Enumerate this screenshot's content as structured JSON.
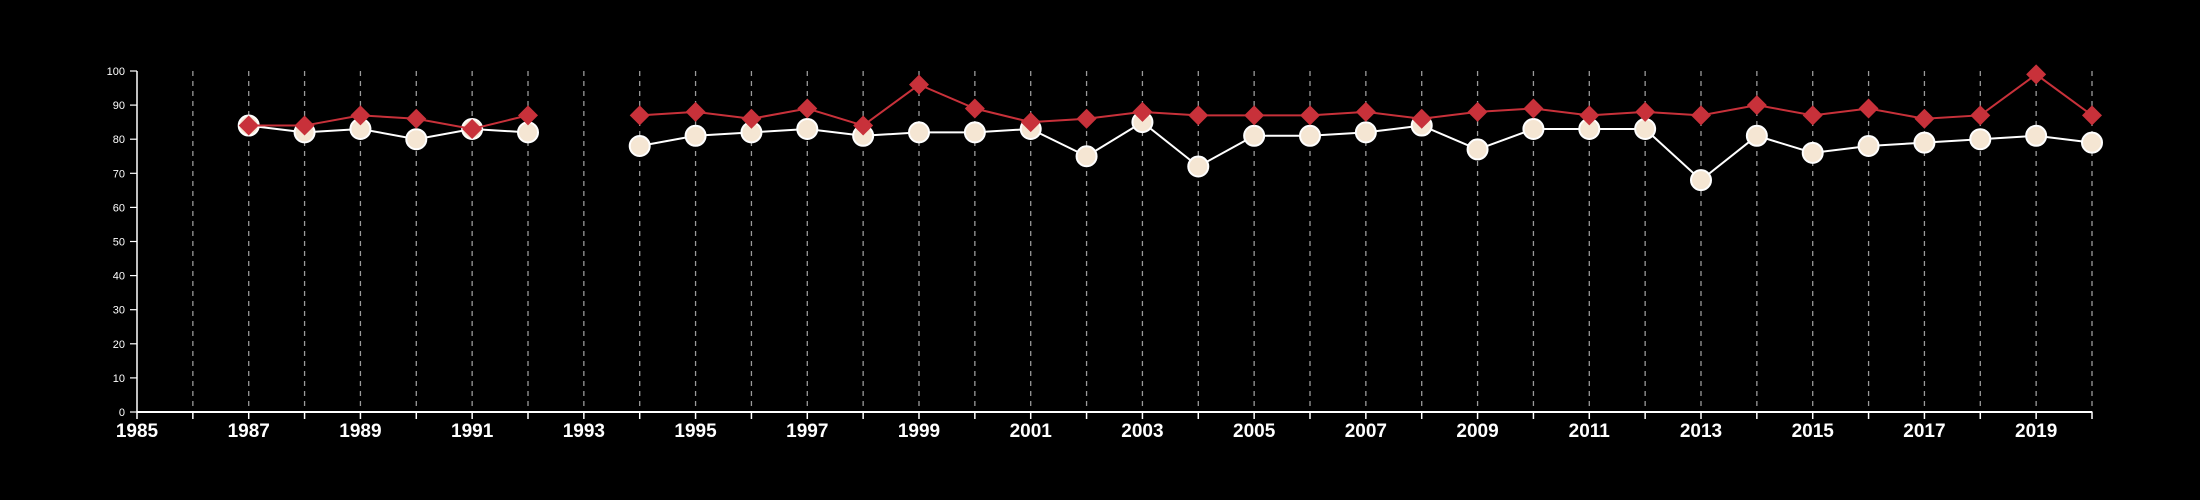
{
  "chart_data": {
    "type": "line",
    "xlim": [
      1985,
      2020
    ],
    "ylim": [
      0,
      100
    ],
    "y_ticks": [
      0,
      10,
      20,
      30,
      40,
      50,
      60,
      70,
      80,
      90,
      100
    ],
    "x_tick_labels": [
      1985,
      1987,
      1989,
      1991,
      1993,
      1995,
      1997,
      1999,
      2001,
      2003,
      2005,
      2007,
      2009,
      2011,
      2013,
      2015,
      2017,
      2019
    ],
    "vertical_gridlines_at": [
      1986,
      1987,
      1988,
      1989,
      1990,
      1991,
      1992,
      1993,
      1994,
      1995,
      1996,
      1997,
      1998,
      1999,
      2000,
      2001,
      2002,
      2003,
      2004,
      2005,
      2006,
      2007,
      2008,
      2009,
      2010,
      2011,
      2012,
      2013,
      2014,
      2015,
      2016,
      2017,
      2018,
      2019,
      2020
    ],
    "grid": "vertical dashed",
    "legend": "none",
    "series": [
      {
        "marker": "circle",
        "color": "#f5e6d3",
        "line_color": "#ffffff",
        "points": [
          {
            "x": 1987,
            "y": 84
          },
          {
            "x": 1988,
            "y": 82
          },
          {
            "x": 1989,
            "y": 83
          },
          {
            "x": 1990,
            "y": 80
          },
          {
            "x": 1991,
            "y": 83
          },
          {
            "x": 1992,
            "y": 82
          },
          {
            "x": 1994,
            "y": 78
          },
          {
            "x": 1995,
            "y": 81
          },
          {
            "x": 1996,
            "y": 82
          },
          {
            "x": 1997,
            "y": 83
          },
          {
            "x": 1998,
            "y": 81
          },
          {
            "x": 1999,
            "y": 82
          },
          {
            "x": 2000,
            "y": 82
          },
          {
            "x": 2001,
            "y": 83
          },
          {
            "x": 2002,
            "y": 75
          },
          {
            "x": 2003,
            "y": 85
          },
          {
            "x": 2004,
            "y": 72
          },
          {
            "x": 2005,
            "y": 81
          },
          {
            "x": 2006,
            "y": 81
          },
          {
            "x": 2007,
            "y": 82
          },
          {
            "x": 2008,
            "y": 84
          },
          {
            "x": 2009,
            "y": 77
          },
          {
            "x": 2010,
            "y": 83
          },
          {
            "x": 2011,
            "y": 83
          },
          {
            "x": 2012,
            "y": 83
          },
          {
            "x": 2013,
            "y": 68
          },
          {
            "x": 2014,
            "y": 81
          },
          {
            "x": 2015,
            "y": 76
          },
          {
            "x": 2016,
            "y": 78
          },
          {
            "x": 2017,
            "y": 79
          },
          {
            "x": 2018,
            "y": 80
          },
          {
            "x": 2019,
            "y": 81
          },
          {
            "x": 2020,
            "y": 79
          }
        ]
      },
      {
        "marker": "diamond",
        "color": "#c8313a",
        "line_color": "#c8313a",
        "points": [
          {
            "x": 1987,
            "y": 84
          },
          {
            "x": 1988,
            "y": 84
          },
          {
            "x": 1989,
            "y": 87
          },
          {
            "x": 1990,
            "y": 86
          },
          {
            "x": 1991,
            "y": 83
          },
          {
            "x": 1992,
            "y": 87
          },
          {
            "x": 1994,
            "y": 87
          },
          {
            "x": 1995,
            "y": 88
          },
          {
            "x": 1996,
            "y": 86
          },
          {
            "x": 1997,
            "y": 89
          },
          {
            "x": 1998,
            "y": 84
          },
          {
            "x": 1999,
            "y": 96
          },
          {
            "x": 2000,
            "y": 89
          },
          {
            "x": 2001,
            "y": 85
          },
          {
            "x": 2002,
            "y": 86
          },
          {
            "x": 2003,
            "y": 88
          },
          {
            "x": 2004,
            "y": 87
          },
          {
            "x": 2005,
            "y": 87
          },
          {
            "x": 2006,
            "y": 87
          },
          {
            "x": 2007,
            "y": 88
          },
          {
            "x": 2008,
            "y": 86
          },
          {
            "x": 2009,
            "y": 88
          },
          {
            "x": 2010,
            "y": 89
          },
          {
            "x": 2011,
            "y": 87
          },
          {
            "x": 2012,
            "y": 88
          },
          {
            "x": 2013,
            "y": 87
          },
          {
            "x": 2014,
            "y": 90
          },
          {
            "x": 2015,
            "y": 87
          },
          {
            "x": 2016,
            "y": 89
          },
          {
            "x": 2017,
            "y": 86
          },
          {
            "x": 2018,
            "y": 87
          },
          {
            "x": 2019,
            "y": 99
          },
          {
            "x": 2020,
            "y": 87
          }
        ]
      }
    ]
  }
}
